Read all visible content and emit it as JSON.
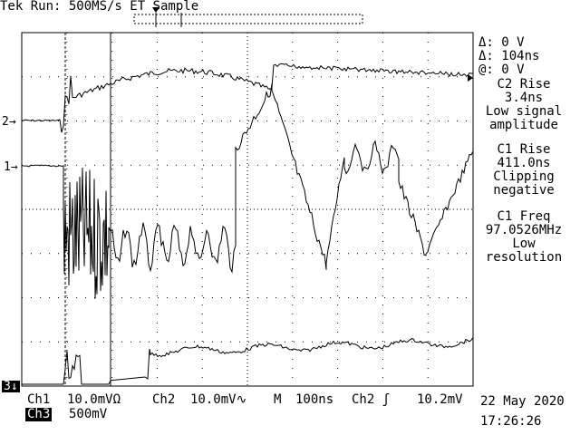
{
  "header": {
    "status": "Tek Run: 500MS/s ET Sample"
  },
  "cursor_readout": {
    "delta_v": "Δ: 0 V",
    "delta_t": "Δ: 104ns",
    "at_v": "@: 0 V"
  },
  "measurements": [
    {
      "title": "C2 Rise",
      "value": "3.4ns",
      "note1": "Low signal",
      "note2": "amplitude"
    },
    {
      "title": "C1 Rise",
      "value": "411.0ns",
      "note1": "Clipping",
      "note2": "negative"
    },
    {
      "title": "C1 Freq",
      "value": "97.0526MHz",
      "note1": "Low",
      "note2": "resolution"
    }
  ],
  "markers": {
    "ch2": "2→",
    "ch1": "1→",
    "ch3": "3↓"
  },
  "footer": {
    "ch1_label": "Ch1",
    "ch1_scale": "10.0mVΩ",
    "ch2_label": "Ch2",
    "ch2_scale": "10.0mV∿",
    "time_label": "M",
    "time_scale": "100ns",
    "trig_label": "Ch2 ʃ",
    "trig_level": "10.2mV",
    "ch3_label": "Ch3",
    "ch3_scale": "500mV",
    "date": "22 May 2020",
    "time": "17:26:26"
  },
  "colors": {
    "trace": "#000000",
    "background": "#ffffff"
  }
}
